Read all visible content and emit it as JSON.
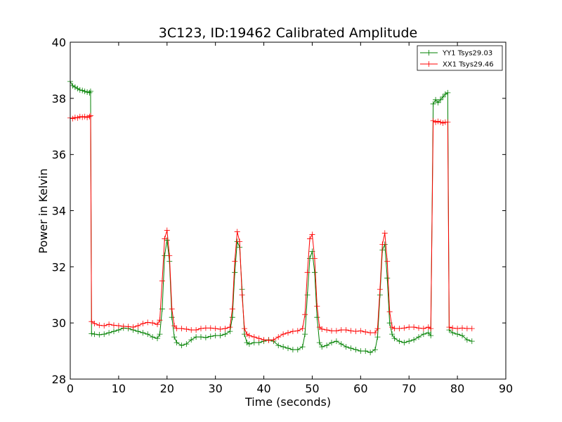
{
  "chart_data": {
    "type": "line",
    "title": "3C123, ID:19462 Calibrated Amplitude",
    "xlabel": "Time (seconds)",
    "ylabel": "Power in Kelvin",
    "xlim": [
      0,
      90
    ],
    "ylim": [
      28,
      40
    ],
    "xticks": [
      0,
      10,
      20,
      30,
      40,
      50,
      60,
      70,
      80,
      90
    ],
    "yticks": [
      28,
      30,
      32,
      34,
      36,
      38,
      40
    ],
    "grid": false,
    "legend_position": "top-right",
    "marker": "+",
    "series": [
      {
        "name": "YY1 Tsys29.03",
        "color": "#008000",
        "points": [
          [
            0,
            38.6
          ],
          [
            0.5,
            38.45
          ],
          [
            1,
            38.4
          ],
          [
            1.5,
            38.35
          ],
          [
            2,
            38.3
          ],
          [
            2.5,
            38.28
          ],
          [
            3,
            38.25
          ],
          [
            3.5,
            38.22
          ],
          [
            4,
            38.2
          ],
          [
            4.2,
            38.25
          ],
          [
            4.4,
            29.62
          ],
          [
            5,
            29.6
          ],
          [
            6,
            29.58
          ],
          [
            7,
            29.6
          ],
          [
            8,
            29.65
          ],
          [
            9,
            29.7
          ],
          [
            10,
            29.75
          ],
          [
            11,
            29.82
          ],
          [
            12,
            29.8
          ],
          [
            13,
            29.75
          ],
          [
            14,
            29.7
          ],
          [
            15,
            29.65
          ],
          [
            16,
            29.6
          ],
          [
            17,
            29.5
          ],
          [
            18,
            29.45
          ],
          [
            18.5,
            29.6
          ],
          [
            19,
            30.5
          ],
          [
            19.5,
            32.4
          ],
          [
            20,
            32.95
          ],
          [
            20.5,
            32.2
          ],
          [
            21,
            30.2
          ],
          [
            21.5,
            29.5
          ],
          [
            22,
            29.3
          ],
          [
            23,
            29.2
          ],
          [
            24,
            29.25
          ],
          [
            25,
            29.4
          ],
          [
            26,
            29.5
          ],
          [
            27,
            29.5
          ],
          [
            28,
            29.48
          ],
          [
            29,
            29.52
          ],
          [
            30,
            29.55
          ],
          [
            31,
            29.55
          ],
          [
            32,
            29.6
          ],
          [
            33,
            29.7
          ],
          [
            33.5,
            30.2
          ],
          [
            34,
            31.8
          ],
          [
            34.5,
            32.9
          ],
          [
            35,
            32.7
          ],
          [
            35.5,
            31.2
          ],
          [
            36,
            29.6
          ],
          [
            36.5,
            29.3
          ],
          [
            37,
            29.25
          ],
          [
            38,
            29.3
          ],
          [
            39,
            29.3
          ],
          [
            40,
            29.35
          ],
          [
            41,
            29.4
          ],
          [
            42,
            29.35
          ],
          [
            43,
            29.2
          ],
          [
            44,
            29.15
          ],
          [
            45,
            29.1
          ],
          [
            46,
            29.05
          ],
          [
            47,
            29.05
          ],
          [
            48,
            29.15
          ],
          [
            48.5,
            29.6
          ],
          [
            49,
            31.0
          ],
          [
            49.5,
            32.3
          ],
          [
            50,
            32.55
          ],
          [
            50.5,
            31.8
          ],
          [
            51,
            30.2
          ],
          [
            51.5,
            29.3
          ],
          [
            52,
            29.15
          ],
          [
            53,
            29.2
          ],
          [
            54,
            29.3
          ],
          [
            55,
            29.35
          ],
          [
            56,
            29.25
          ],
          [
            57,
            29.15
          ],
          [
            58,
            29.1
          ],
          [
            59,
            29.05
          ],
          [
            60,
            29.0
          ],
          [
            61,
            29.0
          ],
          [
            62,
            28.95
          ],
          [
            63,
            29.05
          ],
          [
            63.5,
            29.5
          ],
          [
            64,
            31.0
          ],
          [
            64.5,
            32.6
          ],
          [
            65,
            32.8
          ],
          [
            65.5,
            31.6
          ],
          [
            66,
            30.0
          ],
          [
            66.5,
            29.6
          ],
          [
            67,
            29.45
          ],
          [
            68,
            29.35
          ],
          [
            69,
            29.3
          ],
          [
            70,
            29.35
          ],
          [
            71,
            29.4
          ],
          [
            72,
            29.5
          ],
          [
            73,
            29.6
          ],
          [
            74,
            29.65
          ],
          [
            74.5,
            29.55
          ],
          [
            75,
            37.8
          ],
          [
            75.5,
            37.95
          ],
          [
            76,
            37.85
          ],
          [
            76.5,
            37.95
          ],
          [
            77,
            38.05
          ],
          [
            77.5,
            38.15
          ],
          [
            78,
            38.2
          ],
          [
            78.3,
            29.75
          ],
          [
            79,
            29.65
          ],
          [
            80,
            29.6
          ],
          [
            81,
            29.55
          ],
          [
            82,
            29.4
          ],
          [
            83,
            29.35
          ]
        ]
      },
      {
        "name": "XX1 Tsys29.46",
        "color": "#ff0000",
        "points": [
          [
            0,
            37.3
          ],
          [
            0.5,
            37.28
          ],
          [
            1,
            37.32
          ],
          [
            1.5,
            37.3
          ],
          [
            2,
            37.35
          ],
          [
            2.5,
            37.33
          ],
          [
            3,
            37.35
          ],
          [
            3.5,
            37.32
          ],
          [
            4,
            37.35
          ],
          [
            4.2,
            37.38
          ],
          [
            4.4,
            30.05
          ],
          [
            5,
            29.98
          ],
          [
            6,
            29.92
          ],
          [
            7,
            29.9
          ],
          [
            8,
            29.95
          ],
          [
            9,
            29.92
          ],
          [
            10,
            29.9
          ],
          [
            11,
            29.88
          ],
          [
            12,
            29.87
          ],
          [
            13,
            29.85
          ],
          [
            14,
            29.9
          ],
          [
            15,
            29.98
          ],
          [
            16,
            30.02
          ],
          [
            17,
            30.0
          ],
          [
            18,
            29.95
          ],
          [
            18.5,
            30.1
          ],
          [
            19,
            31.5
          ],
          [
            19.5,
            33.0
          ],
          [
            20,
            33.3
          ],
          [
            20.5,
            32.4
          ],
          [
            21,
            30.5
          ],
          [
            21.5,
            29.9
          ],
          [
            22,
            29.8
          ],
          [
            23,
            29.8
          ],
          [
            24,
            29.78
          ],
          [
            25,
            29.75
          ],
          [
            26,
            29.75
          ],
          [
            27,
            29.8
          ],
          [
            28,
            29.82
          ],
          [
            29,
            29.82
          ],
          [
            30,
            29.8
          ],
          [
            31,
            29.78
          ],
          [
            32,
            29.8
          ],
          [
            33,
            29.85
          ],
          [
            33.5,
            30.5
          ],
          [
            34,
            32.2
          ],
          [
            34.5,
            33.25
          ],
          [
            35,
            32.9
          ],
          [
            35.5,
            31.0
          ],
          [
            36,
            29.8
          ],
          [
            36.5,
            29.6
          ],
          [
            37,
            29.55
          ],
          [
            38,
            29.5
          ],
          [
            39,
            29.45
          ],
          [
            40,
            29.4
          ],
          [
            41,
            29.38
          ],
          [
            42,
            29.4
          ],
          [
            43,
            29.5
          ],
          [
            44,
            29.6
          ],
          [
            45,
            29.65
          ],
          [
            46,
            29.7
          ],
          [
            47,
            29.72
          ],
          [
            48,
            29.8
          ],
          [
            48.5,
            30.3
          ],
          [
            49,
            31.8
          ],
          [
            49.5,
            33.0
          ],
          [
            50,
            33.15
          ],
          [
            50.5,
            32.3
          ],
          [
            51,
            30.6
          ],
          [
            51.5,
            29.85
          ],
          [
            52,
            29.78
          ],
          [
            53,
            29.75
          ],
          [
            54,
            29.72
          ],
          [
            55,
            29.72
          ],
          [
            56,
            29.75
          ],
          [
            57,
            29.75
          ],
          [
            58,
            29.72
          ],
          [
            59,
            29.7
          ],
          [
            60,
            29.72
          ],
          [
            61,
            29.68
          ],
          [
            62,
            29.65
          ],
          [
            63,
            29.65
          ],
          [
            63.5,
            29.8
          ],
          [
            64,
            31.2
          ],
          [
            64.5,
            32.8
          ],
          [
            65,
            33.2
          ],
          [
            65.5,
            32.2
          ],
          [
            66,
            30.4
          ],
          [
            66.5,
            29.85
          ],
          [
            67,
            29.8
          ],
          [
            68,
            29.8
          ],
          [
            69,
            29.82
          ],
          [
            70,
            29.85
          ],
          [
            71,
            29.85
          ],
          [
            72,
            29.82
          ],
          [
            73,
            29.8
          ],
          [
            74,
            29.85
          ],
          [
            74.5,
            29.8
          ],
          [
            75,
            37.2
          ],
          [
            75.5,
            37.15
          ],
          [
            76,
            37.18
          ],
          [
            76.5,
            37.15
          ],
          [
            77,
            37.12
          ],
          [
            77.5,
            37.15
          ],
          [
            78,
            37.15
          ],
          [
            78.3,
            29.85
          ],
          [
            79,
            29.82
          ],
          [
            80,
            29.8
          ],
          [
            81,
            29.82
          ],
          [
            82,
            29.8
          ],
          [
            83,
            29.8
          ]
        ]
      }
    ]
  }
}
